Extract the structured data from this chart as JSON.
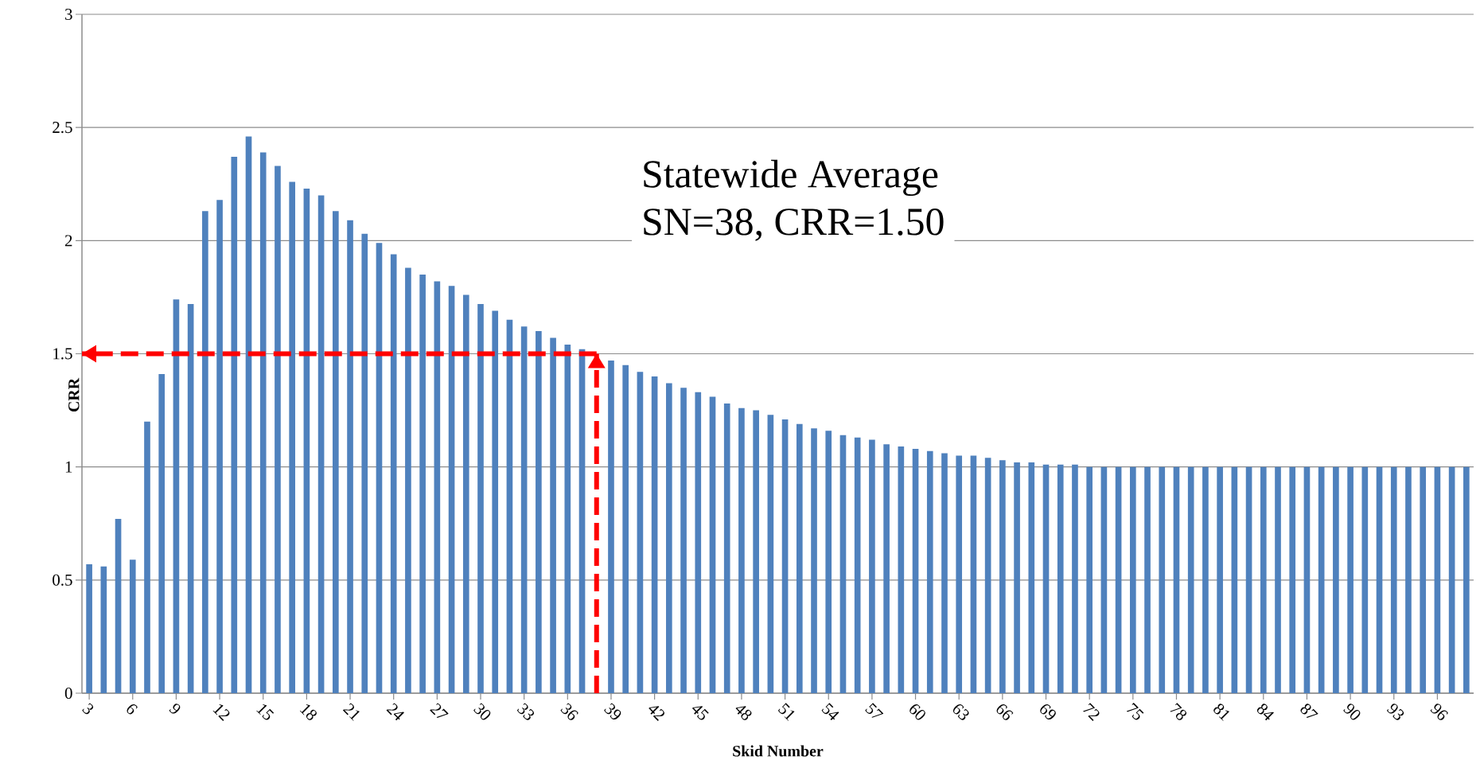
{
  "chart_data": {
    "type": "bar",
    "xlabel": "Skid Number",
    "ylabel": "CRR",
    "x": [
      3,
      4,
      5,
      6,
      7,
      8,
      9,
      10,
      11,
      12,
      13,
      14,
      15,
      16,
      17,
      18,
      19,
      20,
      21,
      22,
      23,
      24,
      25,
      26,
      27,
      28,
      29,
      30,
      31,
      32,
      33,
      34,
      35,
      36,
      37,
      38,
      39,
      40,
      41,
      42,
      43,
      44,
      45,
      46,
      47,
      48,
      49,
      50,
      51,
      52,
      53,
      54,
      55,
      56,
      57,
      58,
      59,
      60,
      61,
      62,
      63,
      64,
      65,
      66,
      67,
      68,
      69,
      70,
      71,
      72,
      73,
      74,
      75,
      76,
      77,
      78,
      79,
      80,
      81,
      82,
      83,
      84,
      85,
      86,
      87,
      88,
      89,
      90,
      91,
      92,
      93,
      94,
      95,
      96,
      97,
      98
    ],
    "values": [
      0.57,
      0.56,
      0.77,
      0.59,
      1.2,
      1.41,
      1.74,
      1.72,
      2.13,
      2.18,
      2.37,
      2.46,
      2.39,
      2.33,
      2.26,
      2.23,
      2.2,
      2.13,
      2.09,
      2.03,
      1.99,
      1.94,
      1.88,
      1.85,
      1.82,
      1.8,
      1.76,
      1.72,
      1.69,
      1.65,
      1.62,
      1.6,
      1.57,
      1.54,
      1.52,
      null,
      1.47,
      1.45,
      1.42,
      1.4,
      1.37,
      1.35,
      1.33,
      1.31,
      1.28,
      1.26,
      1.25,
      1.23,
      1.21,
      1.19,
      1.17,
      1.16,
      1.14,
      1.13,
      1.12,
      1.1,
      1.09,
      1.08,
      1.07,
      1.06,
      1.05,
      1.05,
      1.04,
      1.03,
      1.02,
      1.02,
      1.01,
      1.01,
      1.01,
      1.0,
      1.0,
      1,
      1,
      1,
      1,
      1,
      1,
      1,
      1,
      1,
      1,
      1,
      1,
      1,
      1,
      1,
      1,
      1,
      1,
      1,
      1,
      1,
      1,
      1,
      1,
      1
    ],
    "color": "#4f81bd",
    "xlim": [
      2.5,
      98.5
    ],
    "xticks": [
      3,
      6,
      9,
      12,
      15,
      18,
      21,
      24,
      27,
      30,
      33,
      36,
      39,
      42,
      45,
      48,
      51,
      54,
      57,
      60,
      63,
      66,
      69,
      72,
      75,
      78,
      81,
      84,
      87,
      90,
      93,
      96
    ],
    "ylim": [
      0,
      3
    ],
    "yticks": [
      0,
      0.5,
      1,
      1.5,
      2,
      2.5,
      3
    ],
    "grid": "y",
    "ref_lines": [
      {
        "axis": "y",
        "value": 1.5,
        "color": "#ff0000",
        "line_style": "dashed"
      },
      {
        "axis": "x",
        "value": 38,
        "color": "#ff0000",
        "line_style": "dashed"
      }
    ],
    "annotations": [
      "Statewide Average",
      "SN=38, CRR=1.50"
    ]
  }
}
